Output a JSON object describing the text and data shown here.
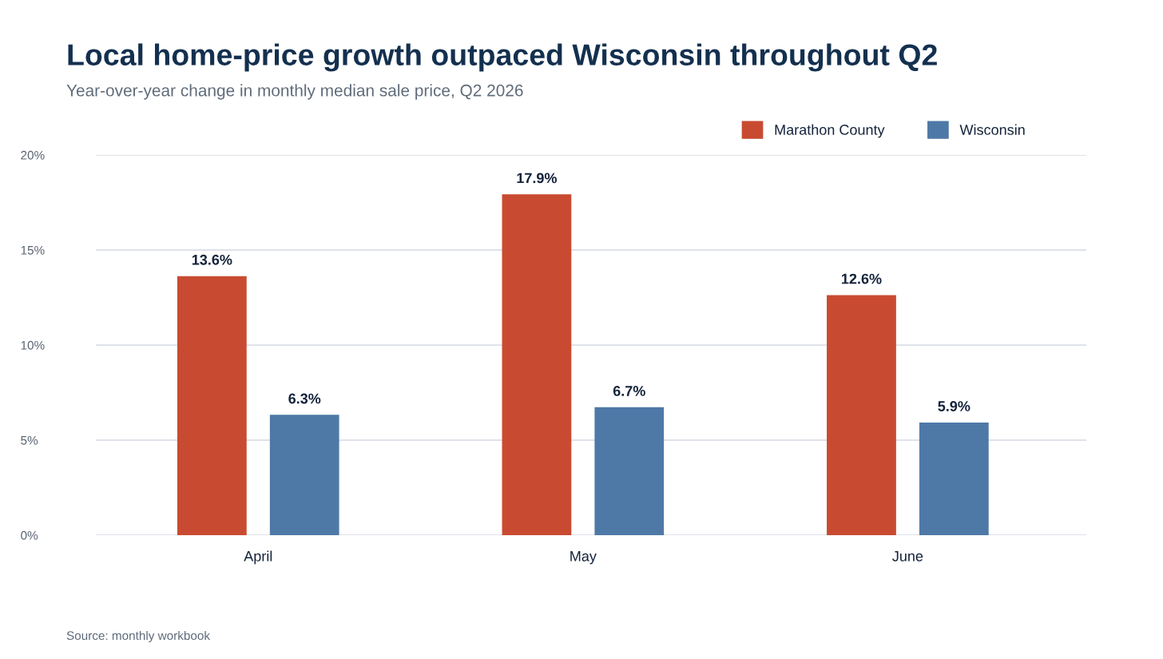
{
  "chart_data": {
    "type": "bar",
    "title": "Local home-price growth outpaced Wisconsin throughout Q2",
    "subtitle": "Year-over-year change in monthly median sale price, Q2 2026",
    "categories": [
      "April",
      "May",
      "June"
    ],
    "series": [
      {
        "name": "Marathon County",
        "color": "#c84b31",
        "values": [
          13.6,
          17.9,
          12.6
        ],
        "value_labels": [
          "13.6%",
          "17.9%",
          "12.6%"
        ]
      },
      {
        "name": "Wisconsin",
        "color": "#4e79a7",
        "values": [
          6.3,
          6.7,
          5.9
        ],
        "value_labels": [
          "6.3%",
          "6.7%",
          "5.9%"
        ]
      }
    ],
    "ylim": [
      0,
      20
    ],
    "yticks": [
      {
        "value": 0,
        "label": "0%"
      },
      {
        "value": 5,
        "label": "5%"
      },
      {
        "value": 10,
        "label": "10%"
      },
      {
        "value": 15,
        "label": "15%"
      },
      {
        "value": 20,
        "label": "20%"
      }
    ],
    "grid": "y",
    "legend": "top right",
    "annotations": [
      "Source: monthly workbook"
    ]
  }
}
